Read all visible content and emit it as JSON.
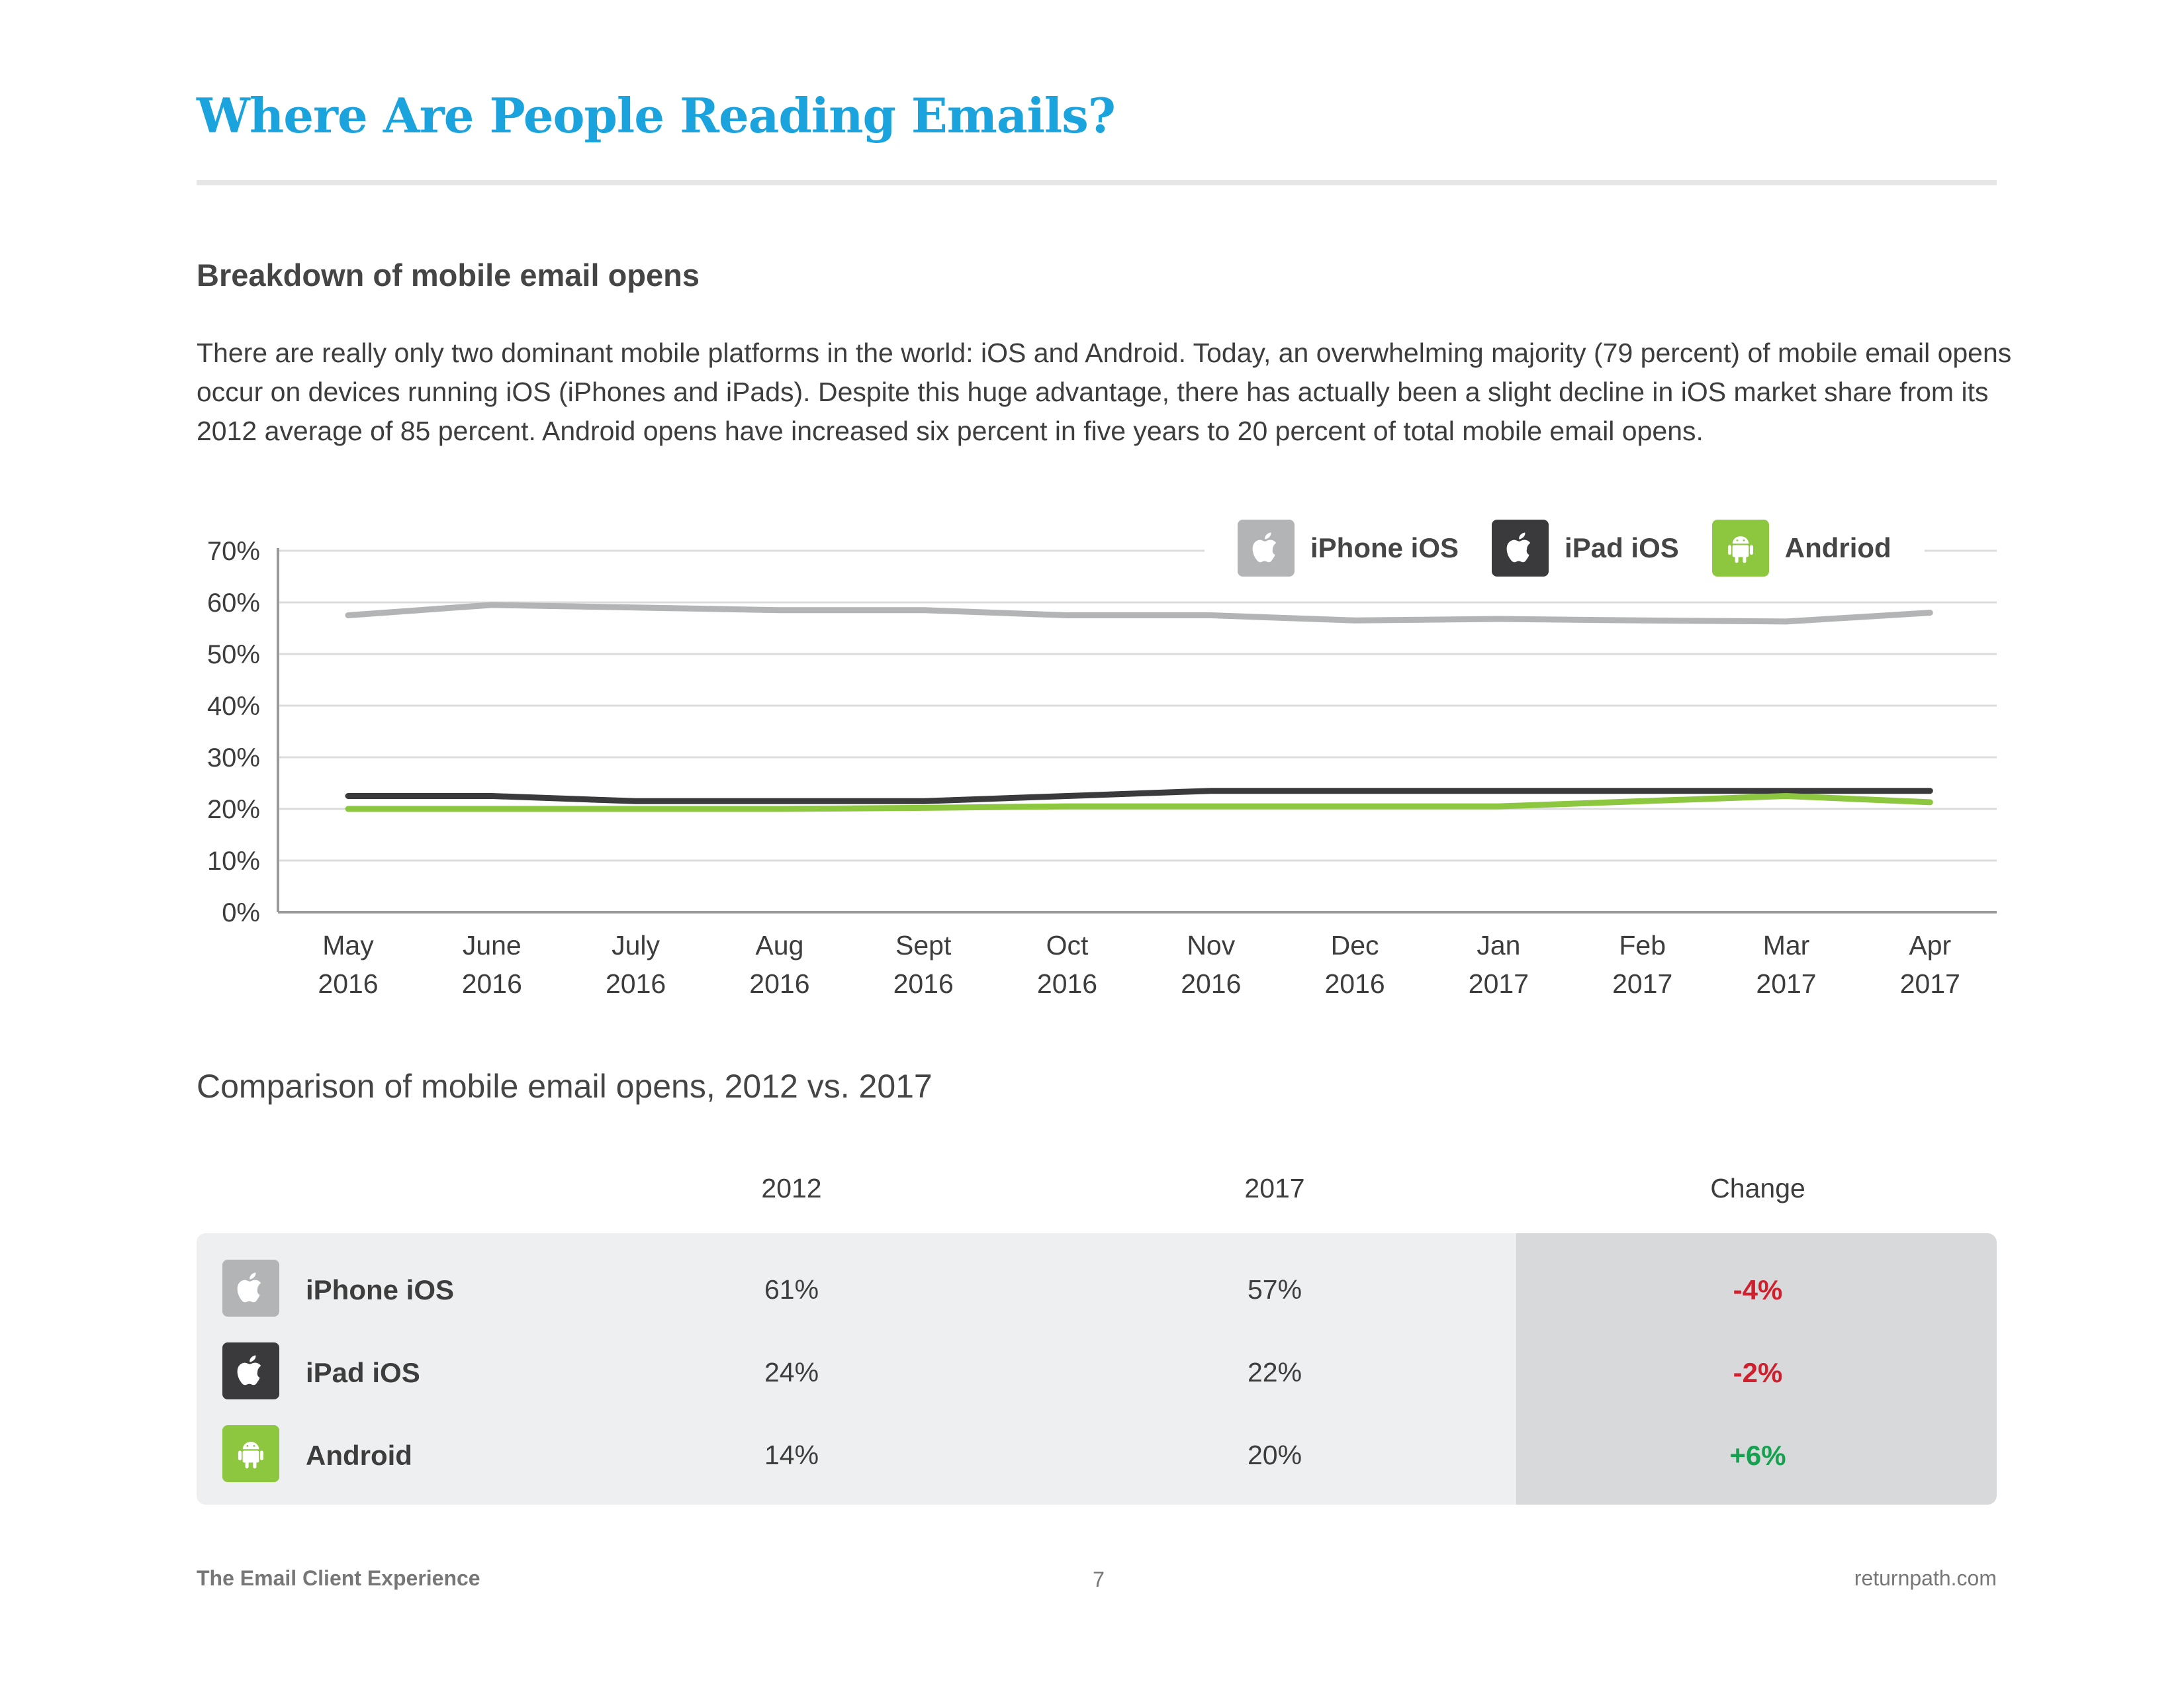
{
  "page": {
    "title": "Where Are People Reading Emails?",
    "section_heading": "Breakdown of mobile email opens",
    "intro": "There are really only two dominant mobile platforms in the world: iOS and Android. Today, an overwhelming majority (79 percent) of mobile email opens occur on devices running iOS (iPhones and iPads). Despite this huge advantage, there has actually been a slight decline in iOS market share from its 2012 average of 85 percent. Android opens have increased six percent in five years to 20 percent of total mobile email opens."
  },
  "legend": [
    {
      "label": "iPhone iOS",
      "icon": "apple-icon",
      "color": "#b3b4b5"
    },
    {
      "label": "iPad iOS",
      "icon": "apple-icon",
      "color": "#3a3a3c"
    },
    {
      "label": "Andriod",
      "icon": "android-icon",
      "color": "#8dc63f"
    }
  ],
  "chart_data": {
    "type": "line",
    "categories": [
      [
        "May",
        "2016"
      ],
      [
        "June",
        "2016"
      ],
      [
        "July",
        "2016"
      ],
      [
        "Aug",
        "2016"
      ],
      [
        "Sept",
        "2016"
      ],
      [
        "Oct",
        "2016"
      ],
      [
        "Nov",
        "2016"
      ],
      [
        "Dec",
        "2016"
      ],
      [
        "Jan",
        "2017"
      ],
      [
        "Feb",
        "2017"
      ],
      [
        "Mar",
        "2017"
      ],
      [
        "Apr",
        "2017"
      ]
    ],
    "yticks": [
      "0%",
      "10%",
      "20%",
      "30%",
      "40%",
      "50%",
      "60%",
      "70%"
    ],
    "ylim": [
      0,
      70
    ],
    "grid": true,
    "legend_position": "top-right",
    "series": [
      {
        "name": "iPhone iOS",
        "color": "#b3b4b5",
        "values": [
          57.5,
          59.5,
          59,
          58.5,
          58.5,
          57.5,
          57.5,
          56.5,
          56.8,
          56.5,
          56.3,
          58
        ]
      },
      {
        "name": "iPad iOS",
        "color": "#3a3a3c",
        "values": [
          22.5,
          22.5,
          21.5,
          21.5,
          21.5,
          22.5,
          23.5,
          23.5,
          23.5,
          23.5,
          23.5,
          23.5
        ]
      },
      {
        "name": "Andriod",
        "color": "#8dc63f",
        "values": [
          20,
          20,
          20,
          20,
          20.2,
          20.5,
          20.5,
          20.5,
          20.5,
          21.5,
          22.5,
          21.3
        ]
      }
    ]
  },
  "comparison": {
    "title": "Comparison of mobile email opens, 2012 vs. 2017",
    "headers": [
      "2012",
      "2017",
      "Change"
    ],
    "rows": [
      {
        "name": "iPhone iOS",
        "icon": "apple-icon",
        "icon_color": "#b3b4b5",
        "v2012": "61%",
        "v2017": "57%",
        "change": "-4%",
        "change_color": "#d0202e"
      },
      {
        "name": "iPad iOS",
        "icon": "apple-icon",
        "icon_color": "#3a3a3c",
        "v2012": "24%",
        "v2017": "22%",
        "change": "-2%",
        "change_color": "#d0202e"
      },
      {
        "name": "Android",
        "icon": "android-icon",
        "icon_color": "#8dc63f",
        "v2012": "14%",
        "v2017": "20%",
        "change": "+6%",
        "change_color": "#16a150"
      }
    ]
  },
  "footer": {
    "left": "The Email Client Experience",
    "page_number": "7",
    "right": "returnpath.com"
  }
}
